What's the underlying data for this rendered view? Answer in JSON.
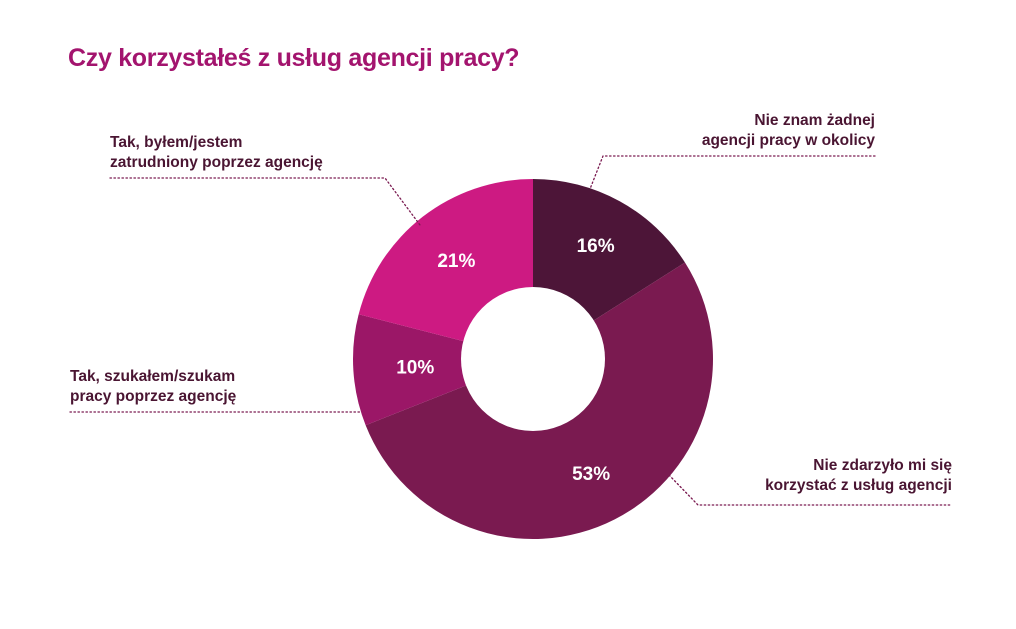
{
  "colors": {
    "title": "#A3146E",
    "label_text": "#4A1532",
    "leader": "#7A1A50",
    "background": "#FFFFFF"
  },
  "chart_data": {
    "type": "pie",
    "title": "Czy korzystałeś z usług agencji pracy?",
    "donut": true,
    "start_angle_deg": 0,
    "direction": "clockwise",
    "slices": [
      {
        "key": "no-agency",
        "label_lines": [
          "Nie znam żadnej",
          "agencji pracy w okolicy"
        ],
        "value": 16,
        "value_label": "16%",
        "color": "#4D1538"
      },
      {
        "key": "never-used",
        "label_lines": [
          "Nie zdarzyło mi się",
          "korzystać z usług agencji"
        ],
        "value": 53,
        "value_label": "53%",
        "color": "#7A1A50"
      },
      {
        "key": "searched",
        "label_lines": [
          "Tak, szukałem/szukam",
          "pracy poprzez agencję"
        ],
        "value": 10,
        "value_label": "10%",
        "color": "#9B1767"
      },
      {
        "key": "employed",
        "label_lines": [
          "Tak, byłem/jestem",
          "zatrudniony poprzez agencję"
        ],
        "value": 21,
        "value_label": "21%",
        "color": "#CD1A82"
      }
    ]
  }
}
